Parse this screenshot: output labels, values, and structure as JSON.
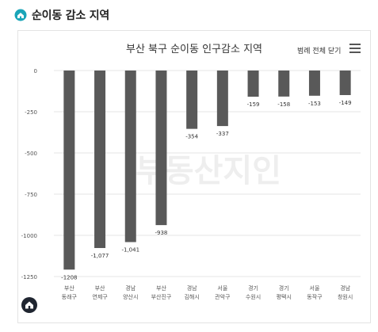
{
  "page": {
    "section_title": "순이동 감소 지역",
    "legend_toggle_label": "범례 전체 닫기",
    "watermark": "부동산지인"
  },
  "colors": {
    "bar": "#595959",
    "accent": "#1aa5b8",
    "grid": "#e6e6e6",
    "text": "#333333"
  },
  "icons": {
    "header": "house-pin-icon",
    "menu": "hamburger-menu-icon",
    "home": "home-icon"
  },
  "chart_data": {
    "type": "bar",
    "title": "부산 북구 순이동 인구감소 지역",
    "categories": [
      [
        "부산",
        "동래구"
      ],
      [
        "부산",
        "연제구"
      ],
      [
        "경남",
        "양산시"
      ],
      [
        "부산",
        "부산진구"
      ],
      [
        "경남",
        "김해시"
      ],
      [
        "서울",
        "관악구"
      ],
      [
        "경기",
        "수원시"
      ],
      [
        "경기",
        "평택시"
      ],
      [
        "서울",
        "동작구"
      ],
      [
        "경남",
        "창원시"
      ]
    ],
    "values": [
      -1208,
      -1077,
      -1041,
      -938,
      -354,
      -337,
      -159,
      -158,
      -153,
      -149
    ],
    "value_labels": [
      "-1208",
      "-1,077",
      "-1,041",
      "-938",
      "-354",
      "-337",
      "-159",
      "-158",
      "-153",
      "-149"
    ],
    "y_ticks": [
      0,
      -250,
      -500,
      -750,
      -1000,
      -1250
    ],
    "y_tick_labels": [
      "0",
      "-250",
      "-500",
      "-750",
      "-1000",
      "-1250"
    ],
    "ylim": [
      -1250,
      0
    ],
    "xlabel": "",
    "ylabel": "",
    "grid": true,
    "legend": "none"
  }
}
